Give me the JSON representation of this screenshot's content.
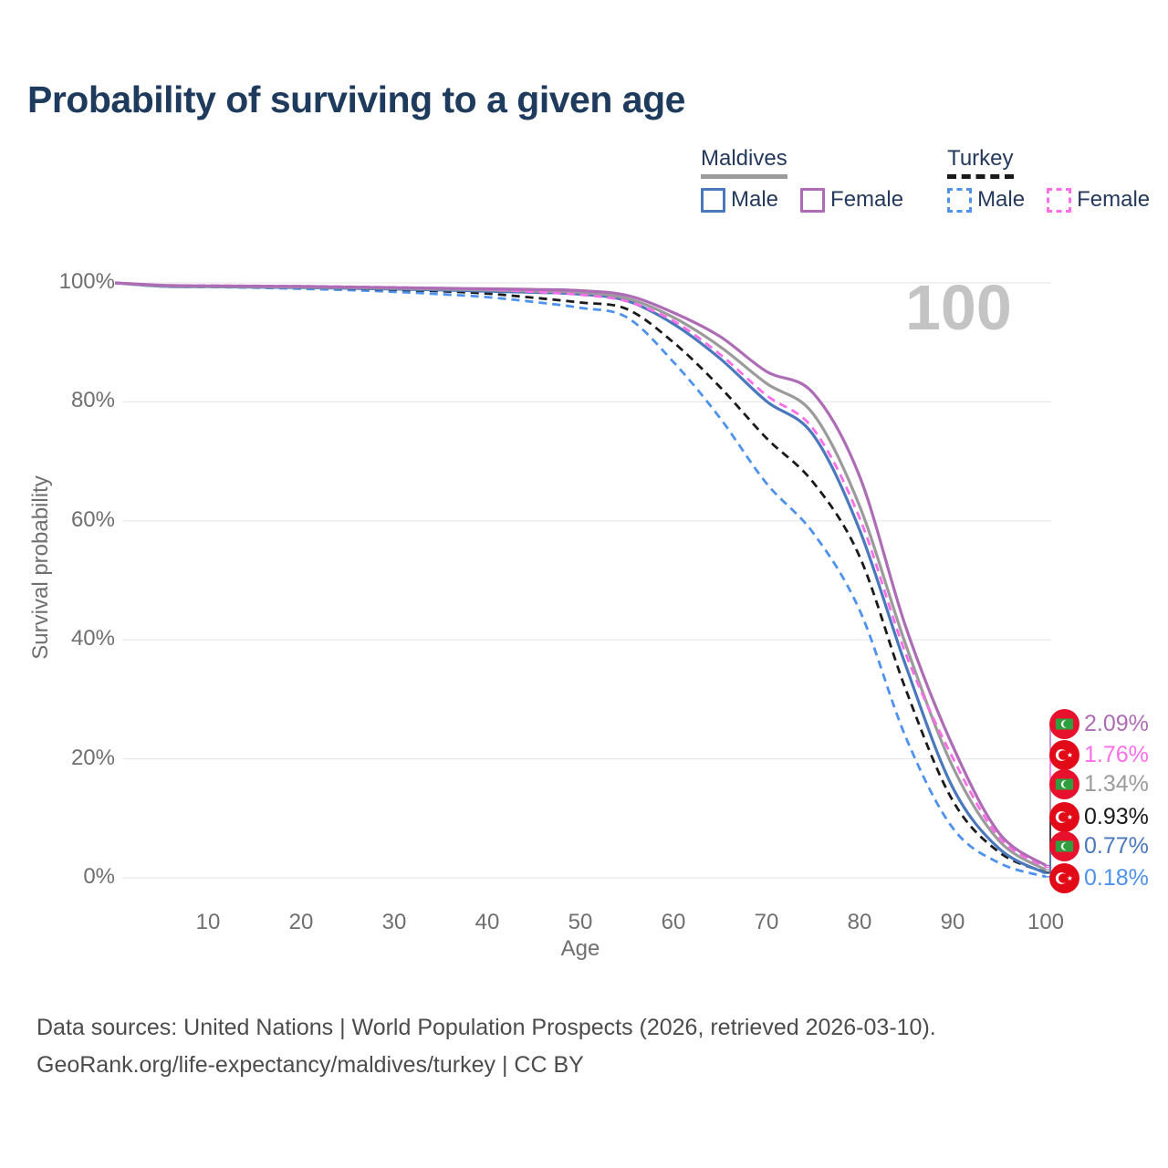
{
  "title": "Probability of surviving to a given age",
  "legend": {
    "groups": [
      {
        "label": "Maldives",
        "line_color": "#9b9b9b",
        "line_dashed": false,
        "items": [
          {
            "label": "Male",
            "color": "#4a78bd",
            "dashed": false
          },
          {
            "label": "Female",
            "color": "#ad6cb5",
            "dashed": false
          }
        ]
      },
      {
        "label": "Turkey",
        "line_color": "#1a1a1a",
        "line_dashed": true,
        "items": [
          {
            "label": "Male",
            "color": "#4e92ee",
            "dashed": true
          },
          {
            "label": "Female",
            "color": "#fb6ee8",
            "dashed": true
          }
        ]
      }
    ]
  },
  "watermark": "100",
  "flags": {
    "maldives": {
      "red": "#e8112d",
      "green": "#2f9e3f",
      "crescent": "#ffffff"
    },
    "turkey": {
      "red": "#e30a17",
      "crescent": "#ffffff"
    }
  },
  "chart_data": {
    "type": "line",
    "title": "Probability of surviving to a given age",
    "xlabel": "Age",
    "ylabel": "Survival probability",
    "xlim": [
      0,
      100
    ],
    "ylim": [
      0,
      100
    ],
    "grid": "horizontal",
    "legend_position": "top-right",
    "xticks": [
      {
        "value": 10,
        "label": "10"
      },
      {
        "value": 20,
        "label": "20"
      },
      {
        "value": 30,
        "label": "30"
      },
      {
        "value": 40,
        "label": "40"
      },
      {
        "value": 50,
        "label": "50"
      },
      {
        "value": 60,
        "label": "60"
      },
      {
        "value": 70,
        "label": "70"
      },
      {
        "value": 80,
        "label": "80"
      },
      {
        "value": 90,
        "label": "90"
      },
      {
        "value": 100,
        "label": "100"
      }
    ],
    "yticks": [
      {
        "value": 0,
        "label": "0%"
      },
      {
        "value": 20,
        "label": "20%"
      },
      {
        "value": 40,
        "label": "40%"
      },
      {
        "value": 60,
        "label": "60%"
      },
      {
        "value": 80,
        "label": "80%"
      },
      {
        "value": 100,
        "label": "100%"
      }
    ],
    "x": [
      0,
      5,
      10,
      15,
      20,
      25,
      30,
      35,
      40,
      45,
      50,
      55,
      60,
      65,
      70,
      75,
      80,
      85,
      90,
      95,
      100
    ],
    "series": [
      {
        "id": "turkey_male",
        "name": "Turkey Male",
        "country": "turkey",
        "sex": "Male",
        "color": "#4e92ee",
        "dashed": true,
        "end_label": "0.18%",
        "values": [
          100,
          99.4,
          99.3,
          99.2,
          99.0,
          98.8,
          98.5,
          98.1,
          97.6,
          96.8,
          95.8,
          94.2,
          86.7,
          77.3,
          66.3,
          58.0,
          45.0,
          23.5,
          8.4,
          2.5,
          0.18
        ]
      },
      {
        "id": "turkey_all",
        "name": "Turkey",
        "country": "turkey",
        "sex": "Both",
        "color": "#1a1a1a",
        "dashed": true,
        "end_label": "0.93%",
        "values": [
          100,
          99.5,
          99.4,
          99.3,
          99.2,
          99.05,
          98.85,
          98.6,
          98.2,
          97.5,
          96.7,
          95.6,
          90.0,
          82.5,
          73.9,
          66.5,
          54.0,
          31.5,
          13.0,
          4.3,
          0.93
        ]
      },
      {
        "id": "maldives_male",
        "name": "Maldives Male",
        "country": "maldives",
        "sex": "Male",
        "color": "#4a78bd",
        "dashed": false,
        "end_label": "0.77%",
        "values": [
          100,
          99.45,
          99.35,
          99.3,
          99.2,
          99.1,
          98.95,
          98.8,
          98.6,
          98.4,
          98.1,
          97.0,
          93.1,
          87.3,
          80.1,
          74.5,
          58.5,
          35.5,
          15.2,
          4.9,
          0.77
        ]
      },
      {
        "id": "maldives_all",
        "name": "Maldives",
        "country": "maldives",
        "sex": "Both",
        "color": "#9b9b9b",
        "dashed": false,
        "end_label": "1.34%",
        "values": [
          100,
          99.5,
          99.4,
          99.35,
          99.3,
          99.2,
          99.1,
          98.95,
          98.8,
          98.6,
          98.4,
          97.4,
          94.2,
          89.3,
          83.1,
          78.0,
          62.5,
          39.0,
          18.7,
          6.2,
          1.34
        ]
      },
      {
        "id": "turkey_female",
        "name": "Turkey Female",
        "country": "turkey",
        "sex": "Female",
        "color": "#fb6ee8",
        "dashed": true,
        "end_label": "1.76%",
        "values": [
          100,
          99.6,
          99.55,
          99.5,
          99.45,
          99.35,
          99.25,
          99.1,
          98.9,
          98.5,
          98.0,
          96.9,
          93.6,
          88.0,
          81.1,
          75.5,
          60.5,
          37.5,
          20.2,
          6.8,
          1.76
        ]
      },
      {
        "id": "maldives_female",
        "name": "Maldives Female",
        "country": "maldives",
        "sex": "Female",
        "color": "#ad6cb5",
        "dashed": false,
        "end_label": "2.09%",
        "values": [
          100,
          99.6,
          99.5,
          99.45,
          99.4,
          99.3,
          99.2,
          99.1,
          99.0,
          98.9,
          98.7,
          97.9,
          95.0,
          91.0,
          85.1,
          81.5,
          67.5,
          42.0,
          22.2,
          7.5,
          2.09
        ]
      }
    ]
  },
  "footer": {
    "line1": "Data sources: United Nations | World Population Prospects (2026, retrieved 2026-03-10).",
    "line2": "GeoRank.org/life-expectancy/maldives/turkey | CC BY"
  }
}
